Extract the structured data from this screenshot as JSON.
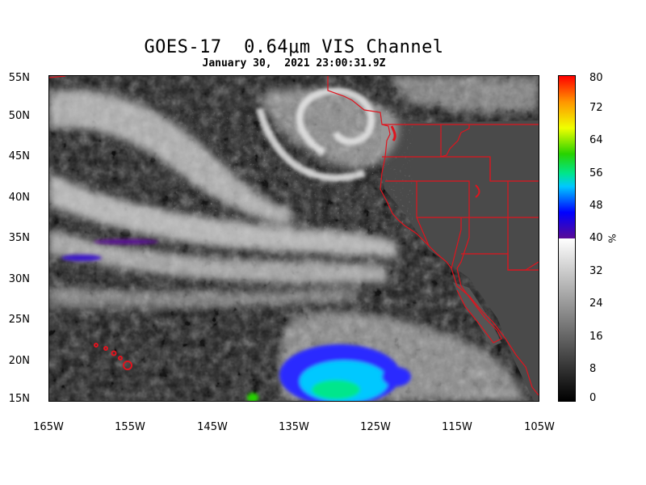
{
  "title": "GOES-17  0.64μm VIS Channel",
  "subtitle": "January 30,  2021 23:00:31.9Z",
  "map": {
    "projection": "lat-lon",
    "lon_range": [
      -165,
      -105
    ],
    "lat_range": [
      15,
      55
    ],
    "lat_labels": [
      "55N",
      "50N",
      "45N",
      "40N",
      "35N",
      "30N",
      "25N",
      "20N",
      "15N"
    ],
    "lat_values": [
      55,
      50,
      45,
      40,
      35,
      30,
      25,
      20,
      15
    ],
    "lon_labels": [
      "165W",
      "155W",
      "145W",
      "135W",
      "125W",
      "115W",
      "105W"
    ],
    "lon_values": [
      -165,
      -155,
      -145,
      -135,
      -125,
      -115,
      -105
    ],
    "border_color": "#e0141e",
    "features": [
      "North Pacific cloud cover",
      "extratropical cyclone near 49N 137W",
      "Hawaiian Islands",
      "US West Coast state borders",
      "Baja California"
    ]
  },
  "colorbar": {
    "ticks": [
      "80",
      "72",
      "64",
      "56",
      "48",
      "40",
      "32",
      "24",
      "16",
      "8",
      "0"
    ],
    "unit": "%",
    "range": [
      0,
      80
    ],
    "gray_range": [
      0,
      40
    ],
    "color_range": [
      40,
      80
    ],
    "colors": [
      "#000000",
      "#ffffff",
      "#5a0a96",
      "#0000ff",
      "#00c8ff",
      "#00e68c",
      "#28d200",
      "#f0ff00",
      "#ff9600",
      "#ff0000"
    ]
  }
}
